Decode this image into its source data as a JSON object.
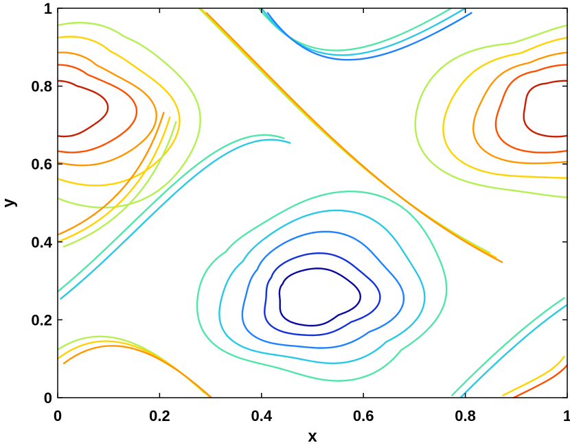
{
  "chart_data": {
    "type": "contour",
    "title": "",
    "xlabel": "x",
    "ylabel": "y",
    "xlim": [
      0,
      1
    ],
    "ylim": [
      0,
      1
    ],
    "x_ticks": [
      0,
      0.2,
      0.4,
      0.6,
      0.8,
      1
    ],
    "y_ticks": [
      0,
      0.2,
      0.4,
      0.6,
      0.8,
      1
    ],
    "x_tick_labels": [
      "0",
      "0.2",
      "0.4",
      "0.6",
      "0.8",
      "1"
    ],
    "y_tick_labels": [
      "0",
      "0.2",
      "0.4",
      "0.6",
      "0.8",
      "1"
    ],
    "grid": false,
    "legend": "none",
    "colormap": "jet",
    "features": [
      {
        "kind": "max",
        "x": 0.0,
        "y": 0.75,
        "color": "#c80000"
      },
      {
        "kind": "max",
        "x": 1.0,
        "y": 0.75,
        "color": "#c80000"
      },
      {
        "kind": "min",
        "x": 0.5,
        "y": 0.25,
        "color": "#0000b4"
      }
    ],
    "levels": [
      {
        "level": 0.9,
        "color": "#c81e00",
        "radius": 0.07
      },
      {
        "level": 0.8,
        "color": "#ff5000",
        "radius": 0.11
      },
      {
        "level": 0.7,
        "color": "#ff9600",
        "radius": 0.14
      },
      {
        "level": 0.6,
        "color": "#ffd200",
        "radius": 0.18
      },
      {
        "level": 0.5,
        "color": "#b4f050",
        "radius": 0.22
      },
      {
        "level": 0.4,
        "color": "#50e6aa",
        "radius": 0.22
      },
      {
        "level": 0.3,
        "color": "#28c8e6",
        "radius": 0.18
      },
      {
        "level": 0.2,
        "color": "#1e82ff",
        "radius": 0.14
      },
      {
        "level": 0.1,
        "color": "#1432dc",
        "radius": 0.1
      },
      {
        "level": 0.05,
        "color": "#0a0aa0",
        "radius": 0.07
      }
    ]
  }
}
